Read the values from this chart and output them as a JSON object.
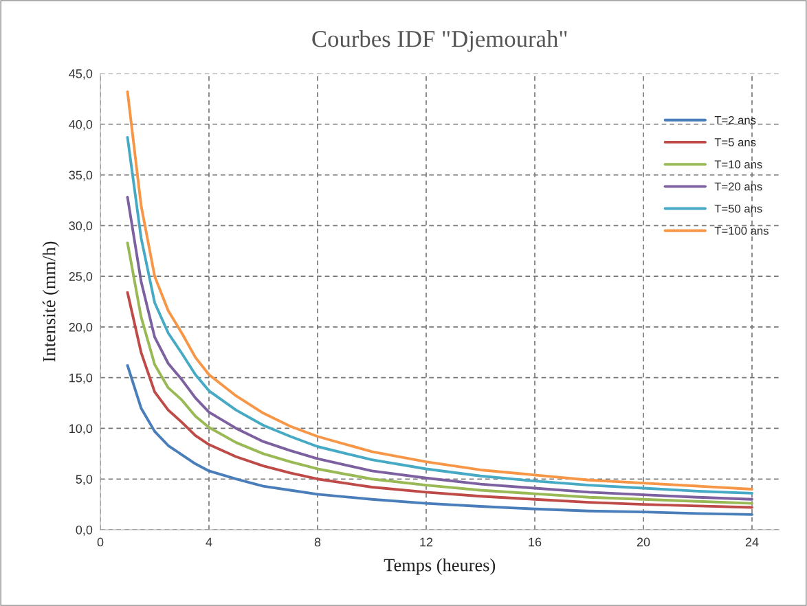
{
  "chart_data": {
    "type": "line",
    "title": "Courbes IDF \"Djemourah\"",
    "xlabel": "Temps (heures)",
    "ylabel": "Intensité (mm/h)",
    "x": [
      1,
      1.5,
      2,
      2.5,
      3,
      3.5,
      4,
      5,
      6,
      7,
      8,
      10,
      12,
      14,
      16,
      18,
      20,
      22,
      24
    ],
    "series": [
      {
        "name": "T=2 ans",
        "color": "#4a7ebb",
        "values": [
          16.2,
          12.0,
          9.7,
          8.3,
          7.4,
          6.5,
          5.8,
          5.0,
          4.3,
          3.9,
          3.5,
          3.0,
          2.6,
          2.3,
          2.05,
          1.85,
          1.75,
          1.6,
          1.5
        ]
      },
      {
        "name": "T=5 ans",
        "color": "#be4b48",
        "values": [
          23.4,
          17.5,
          13.6,
          11.8,
          10.6,
          9.3,
          8.4,
          7.2,
          6.3,
          5.6,
          5.0,
          4.2,
          3.7,
          3.3,
          3.0,
          2.7,
          2.5,
          2.35,
          2.2
        ]
      },
      {
        "name": "T=10 ans",
        "color": "#98b954",
        "values": [
          28.3,
          21.0,
          16.3,
          14.0,
          12.8,
          11.2,
          10.1,
          8.6,
          7.5,
          6.7,
          6.0,
          5.0,
          4.4,
          3.9,
          3.55,
          3.2,
          3.0,
          2.8,
          2.6
        ]
      },
      {
        "name": "T=20 ans",
        "color": "#7d60a0",
        "values": [
          32.8,
          24.5,
          19.0,
          16.4,
          14.8,
          13.0,
          11.6,
          10.0,
          8.7,
          7.8,
          7.0,
          5.8,
          5.1,
          4.5,
          4.1,
          3.7,
          3.45,
          3.2,
          3.0
        ]
      },
      {
        "name": "T=50 ans",
        "color": "#46aac5",
        "values": [
          38.7,
          28.8,
          22.4,
          19.4,
          17.4,
          15.3,
          13.7,
          11.8,
          10.3,
          9.2,
          8.2,
          6.9,
          6.0,
          5.3,
          4.8,
          4.4,
          4.1,
          3.8,
          3.6
        ]
      },
      {
        "name": "T=100 ans",
        "color": "#f79646",
        "values": [
          43.2,
          32.0,
          25.0,
          21.6,
          19.4,
          17.0,
          15.3,
          13.2,
          11.5,
          10.2,
          9.2,
          7.7,
          6.7,
          5.9,
          5.4,
          4.9,
          4.6,
          4.3,
          4.0
        ]
      }
    ],
    "xlim": [
      0,
      25
    ],
    "xticks": [
      0,
      4,
      8,
      12,
      16,
      20,
      24
    ],
    "ylim": [
      0,
      45
    ],
    "yticks": [
      {
        "value": 0,
        "label": "0,0"
      },
      {
        "value": 5,
        "label": "5,0"
      },
      {
        "value": 10,
        "label": "10,0"
      },
      {
        "value": 15,
        "label": "15,0"
      },
      {
        "value": 20,
        "label": "20,0"
      },
      {
        "value": 25,
        "label": "25,0"
      },
      {
        "value": 30,
        "label": "30,0"
      },
      {
        "value": 35,
        "label": "35,0"
      },
      {
        "value": 40,
        "label": "40,0"
      },
      {
        "value": 45,
        "label": "45,0"
      }
    ],
    "grid": true,
    "legend": "top right",
    "marker": "none",
    "line_style": "solid"
  }
}
